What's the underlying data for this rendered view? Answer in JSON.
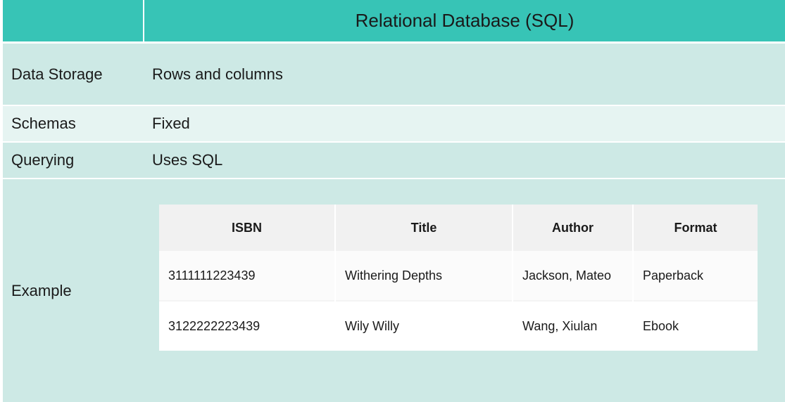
{
  "header": {
    "title": "Relational Database (SQL)"
  },
  "rows": [
    {
      "label": "Data Storage",
      "value": "Rows and columns"
    },
    {
      "label": "Schemas",
      "value": "Fixed"
    },
    {
      "label": "Querying",
      "value": "Uses SQL"
    },
    {
      "label": "Example"
    }
  ],
  "example_table": {
    "columns": [
      "ISBN",
      "Title",
      "Author",
      "Format"
    ],
    "rows": [
      [
        "3111111223439",
        "Withering Depths",
        "Jackson, Mateo",
        "Paperback"
      ],
      [
        "3122222223439",
        "Wily Willy",
        "Wang, Xiulan",
        "Ebook"
      ]
    ]
  },
  "colors": {
    "header_bg": "#37c4b6",
    "row_dark": "#cde9e5",
    "row_light": "#e6f4f2"
  }
}
